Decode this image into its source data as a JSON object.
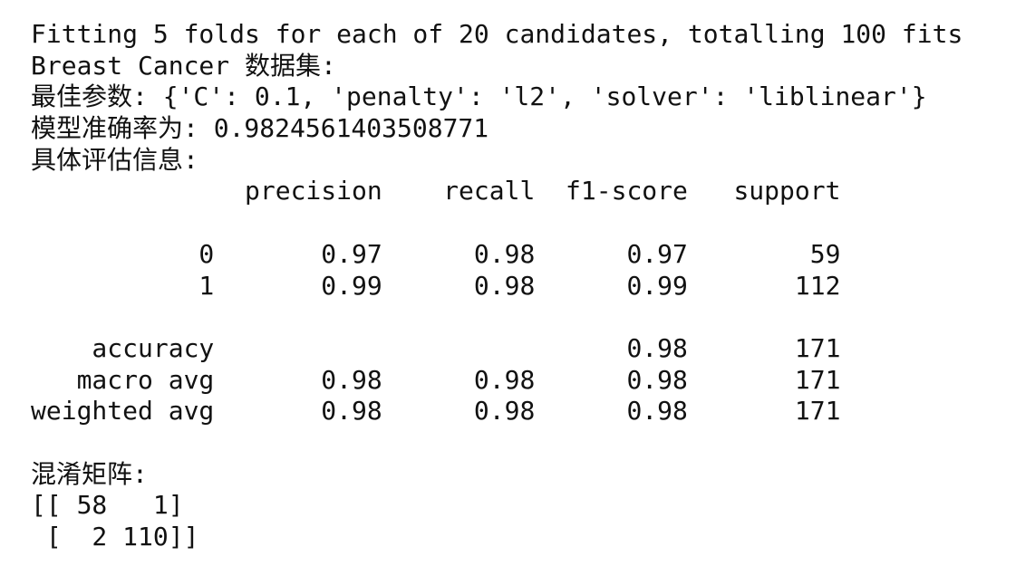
{
  "output": {
    "fit_message": "Fitting 5 folds for each of 20 candidates, totalling 100 fits",
    "dataset_line": "Breast Cancer 数据集:",
    "best_params_line": "最佳参数: {'C': 0.1, 'penalty': 'l2', 'solver': 'liblinear'}",
    "accuracy_line": "模型准确率为: 0.9824561403508771",
    "report_title": "具体评估信息:",
    "report_header": "              precision    recall  f1-score   support",
    "report_blank_1": "",
    "report_row_0": "           0       0.97      0.98      0.97        59",
    "report_row_1": "           1       0.99      0.98      0.99       112",
    "report_blank_2": "",
    "report_accuracy": "    accuracy                           0.98       171",
    "report_macro": "   macro avg       0.98      0.98      0.98       171",
    "report_weighted": "weighted avg       0.98      0.98      0.98       171",
    "blank_3": "",
    "confusion_title": "混淆矩阵:",
    "confusion_row_1": "[[ 58   1]",
    "confusion_row_2": " [  2 110]]"
  }
}
